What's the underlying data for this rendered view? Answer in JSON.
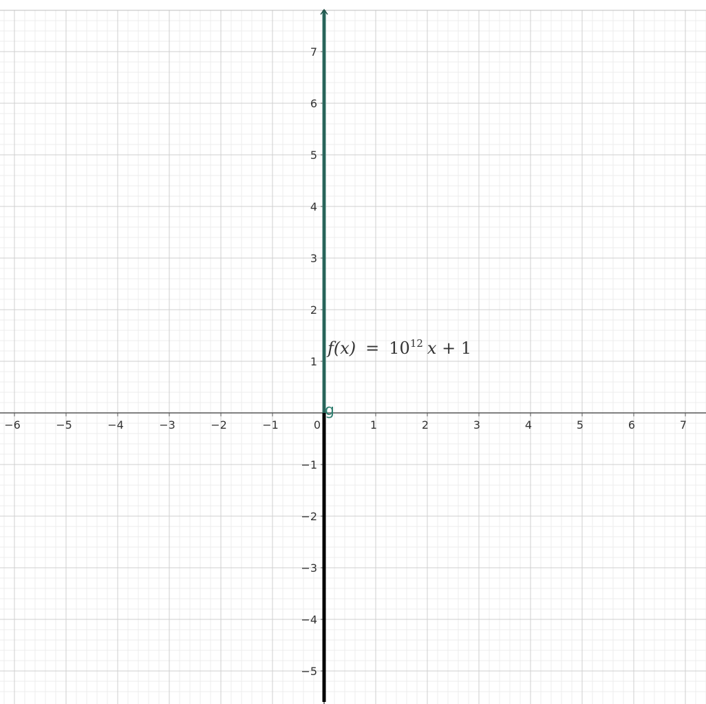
{
  "chart_data": {
    "type": "line",
    "x_ticks": [
      "−6",
      "−5",
      "−4",
      "−3",
      "−2",
      "−1",
      "0",
      "1",
      "2",
      "3",
      "4",
      "5",
      "6",
      "7"
    ],
    "y_ticks": [
      "7",
      "6",
      "5",
      "4",
      "3",
      "2",
      "1",
      "−1",
      "−2",
      "−3",
      "−4",
      "−5"
    ],
    "xlim": [
      -6.27,
      7.4
    ],
    "ylim": [
      -5.6,
      7.8
    ],
    "grid": true,
    "minor_grid_divisions": 5,
    "series": [
      {
        "name": "f",
        "label": {
          "fx": "f(x)",
          "eq": "=",
          "base": "10",
          "exponent": "12",
          "rest_x": "x",
          "rest_const": "+ 1"
        },
        "formula": "10^12 x + 1",
        "slope": 1000000000000,
        "intercept": 1,
        "x": [
          -6.6e-12,
          6.8e-12
        ],
        "y": [
          -5.6,
          7.8
        ],
        "color": "#000000",
        "highlight_color": "#2e6e63",
        "highlight_y_range": [
          0,
          7.8
        ]
      }
    ],
    "points": [
      {
        "label": "g",
        "x": 0,
        "y": 0,
        "color": "#2e7d6e"
      }
    ]
  },
  "colors": {
    "minor_grid": "#ececec",
    "major_grid": "#cfcfcf",
    "axis": "#555555",
    "tick_text": "#333333"
  }
}
